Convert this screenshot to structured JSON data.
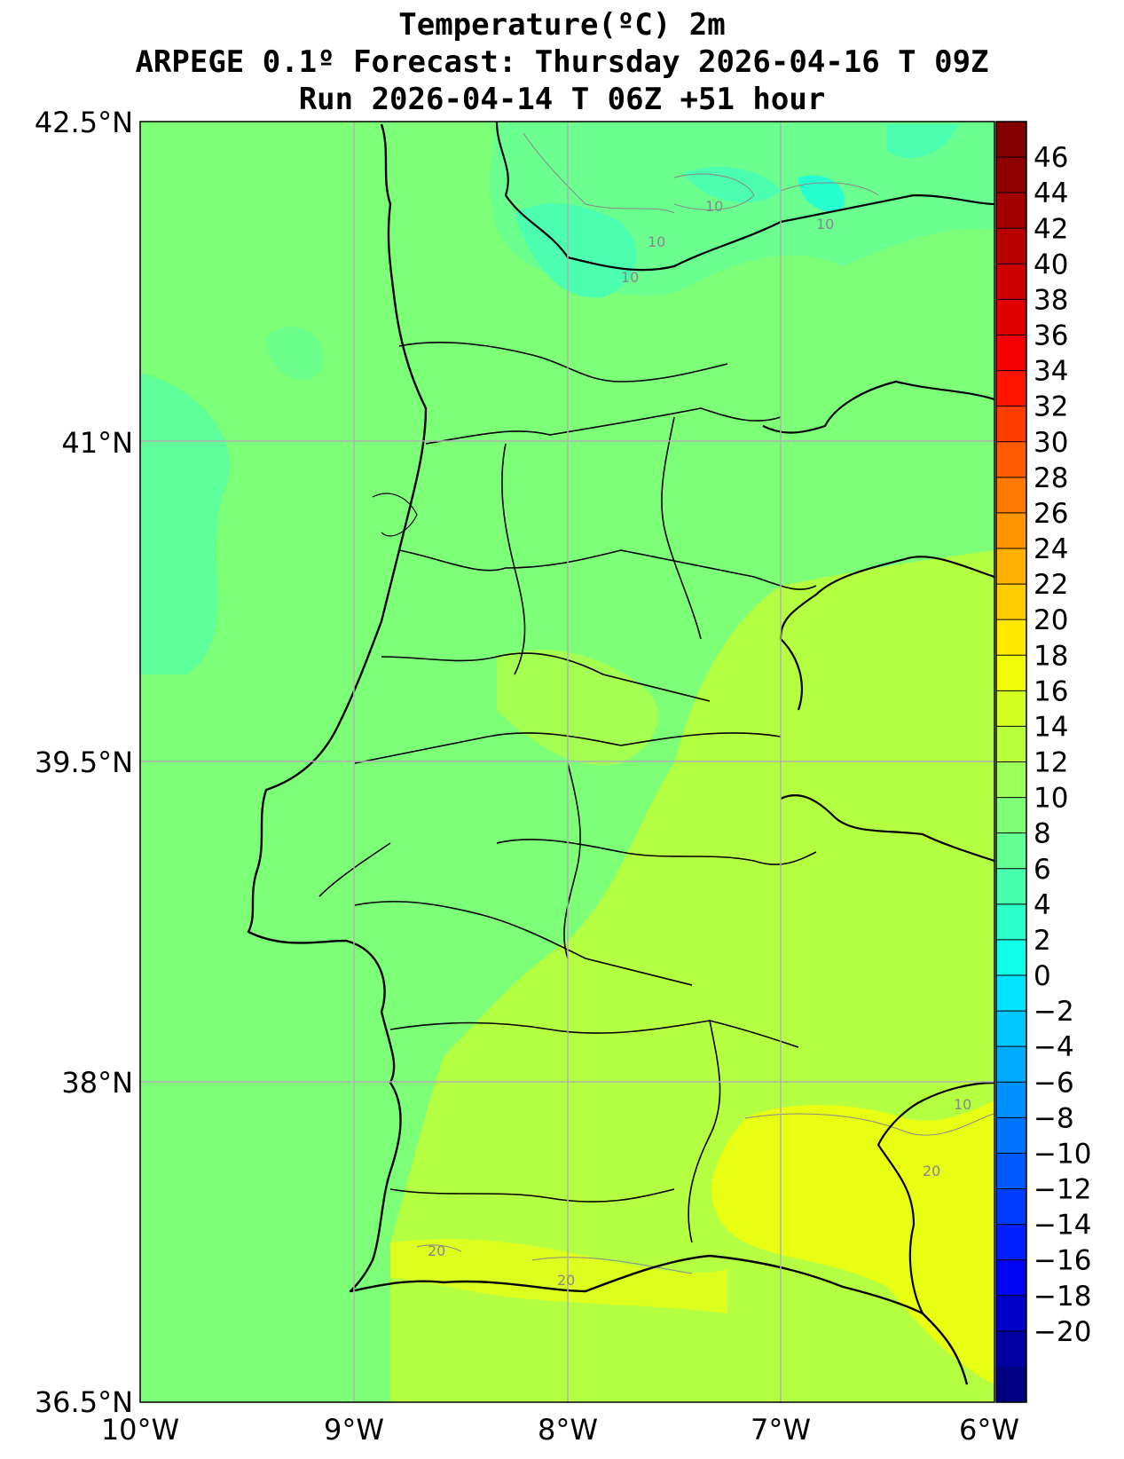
{
  "header": {
    "line1": "Temperature(ºC) 2m",
    "line2": "ARPEGE 0.1º Forecast: Thursday 2026-04-16 T 09Z",
    "line3": "Run 2026-04-14 T 06Z +51 hour"
  },
  "map": {
    "lon_range": [
      -10,
      -6
    ],
    "lat_range": [
      36.5,
      42.5
    ],
    "lon_tick_labels": [
      "10°W",
      "9°W",
      "8°W",
      "7°W",
      "6°W"
    ],
    "lat_tick_labels": [
      "42.5°N",
      "41°N",
      "39.5°N",
      "38°N",
      "36.5°N"
    ],
    "contour_labels": [
      "10",
      "10",
      "10",
      "10",
      "10",
      "20",
      "20",
      "20"
    ],
    "grid": true
  },
  "colorbar": {
    "tick_labels": [
      "46",
      "44",
      "42",
      "40",
      "38",
      "36",
      "34",
      "32",
      "30",
      "28",
      "26",
      "24",
      "22",
      "20",
      "18",
      "16",
      "14",
      "12",
      "10",
      "8",
      "6",
      "4",
      "2",
      "0",
      "−2",
      "−4",
      "−6",
      "−8",
      "−10",
      "−12",
      "−14",
      "−16",
      "−18",
      "−20"
    ],
    "colors_top_to_bottom": [
      "#800000",
      "#8e0000",
      "#a30000",
      "#b80000",
      "#cc0000",
      "#e00000",
      "#f50000",
      "#ff1400",
      "#ff3c00",
      "#ff5c00",
      "#ff7800",
      "#ff9400",
      "#ffb000",
      "#ffcc00",
      "#ffe800",
      "#f0fc06",
      "#d4ff22",
      "#b8ff3e",
      "#9cff5a",
      "#80ff76",
      "#64ff92",
      "#48ffae",
      "#2cffca",
      "#10ffe6",
      "#00e4ff",
      "#00c8ff",
      "#00acff",
      "#0090ff",
      "#0074ff",
      "#0058ff",
      "#003cff",
      "#0020ff",
      "#0004f0",
      "#0000c8",
      "#0000a0",
      "#000080"
    ],
    "accent_colors": {
      "cool": "#5cff9e",
      "mild": "#80ff76",
      "warm": "#b8ff3e",
      "hot": "#e8ff14"
    }
  }
}
